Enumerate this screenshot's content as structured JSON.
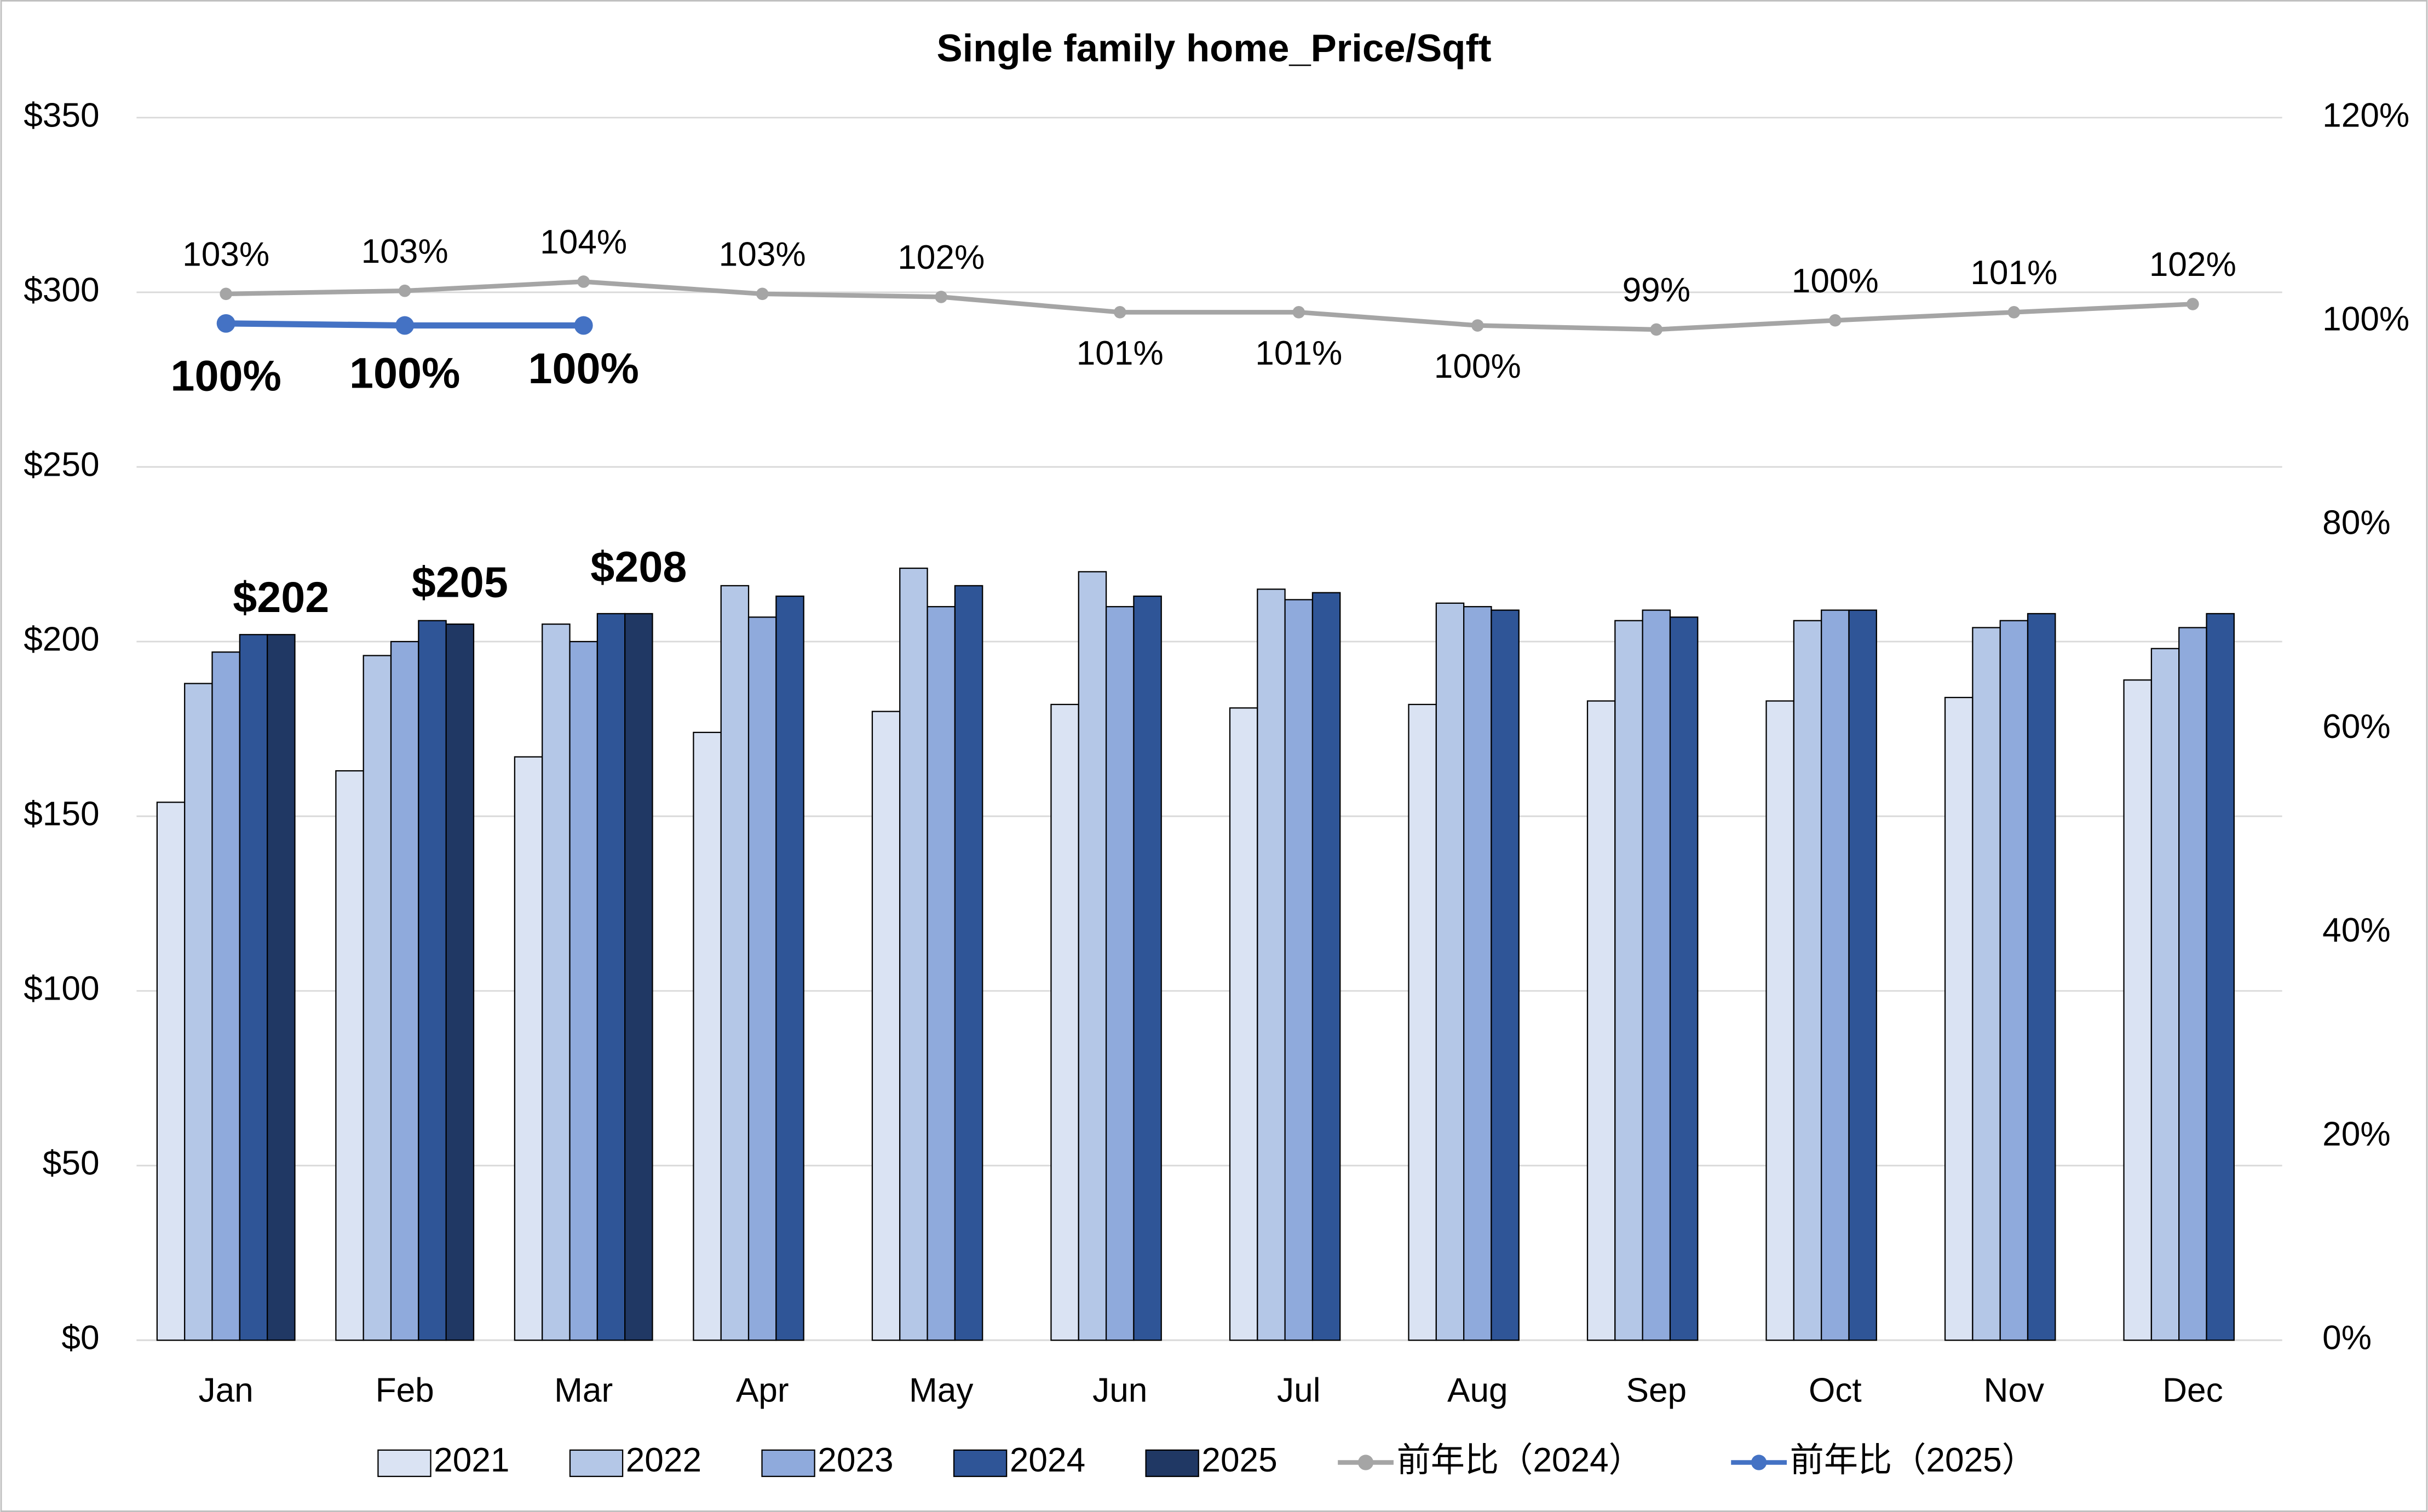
{
  "chart_data": {
    "type": "bar",
    "title": "Single family home_Price/Sqft",
    "categories": [
      "Jan",
      "Feb",
      "Mar",
      "Apr",
      "May",
      "Jun",
      "Jul",
      "Aug",
      "Sep",
      "Oct",
      "Nov",
      "Dec"
    ],
    "ylim": [
      0,
      350
    ],
    "yticks": [
      {
        "value": 0,
        "label": "$0"
      },
      {
        "value": 50,
        "label": "$50"
      },
      {
        "value": 100,
        "label": "$100"
      },
      {
        "value": 150,
        "label": "$150"
      },
      {
        "value": 200,
        "label": "$200"
      },
      {
        "value": 250,
        "label": "$250"
      },
      {
        "value": 300,
        "label": "$300"
      },
      {
        "value": 350,
        "label": "$350"
      }
    ],
    "y2lim": [
      0,
      120
    ],
    "y2ticks": [
      {
        "value": 0,
        "label": "0%"
      },
      {
        "value": 20,
        "label": "20%"
      },
      {
        "value": 40,
        "label": "40%"
      },
      {
        "value": 60,
        "label": "60%"
      },
      {
        "value": 80,
        "label": "80%"
      },
      {
        "value": 100,
        "label": "100%"
      },
      {
        "value": 120,
        "label": "120%"
      }
    ],
    "grid": true,
    "legend": "bottom",
    "series": [
      {
        "name": "2021",
        "type": "bar",
        "color": "#dae3f3",
        "values": [
          154,
          163,
          167,
          174,
          180,
          182,
          181,
          182,
          183,
          183,
          184,
          189
        ]
      },
      {
        "name": "2022",
        "type": "bar",
        "color": "#b4c7e7",
        "values": [
          188,
          196,
          205,
          216,
          221,
          220,
          215,
          211,
          206,
          206,
          204,
          198
        ]
      },
      {
        "name": "2023",
        "type": "bar",
        "color": "#8faadc",
        "values": [
          197,
          200,
          200,
          207,
          210,
          210,
          212,
          210,
          209,
          209,
          206,
          204
        ]
      },
      {
        "name": "2024",
        "type": "bar",
        "color": "#2f5597",
        "values": [
          202,
          206,
          208,
          213,
          216,
          213,
          214,
          209,
          207,
          209,
          208,
          208
        ]
      },
      {
        "name": "2025",
        "type": "bar",
        "color": "#203864",
        "values": [
          202,
          205,
          208,
          null,
          null,
          null,
          null,
          null,
          null,
          null,
          null,
          null
        ],
        "value_labels": [
          "$202",
          "$205",
          "$208",
          null,
          null,
          null,
          null,
          null,
          null,
          null,
          null,
          null
        ]
      },
      {
        "name": "前年比（2024）",
        "type": "line",
        "axis": "y2",
        "color": "#a5a5a5",
        "values": [
          102.7,
          103.0,
          103.9,
          102.7,
          102.4,
          100.9,
          100.9,
          99.6,
          99.2,
          100.1,
          100.9,
          101.7
        ],
        "value_labels": [
          "103%",
          "103%",
          "104%",
          "103%",
          "102%",
          "101%",
          "101%",
          "100%",
          "99%",
          "100%",
          "101%",
          "102%"
        ]
      },
      {
        "name": "前年比（2025）",
        "type": "line",
        "axis": "y2",
        "color": "#4472c4",
        "values": [
          99.8,
          99.6,
          99.6,
          null,
          null,
          null,
          null,
          null,
          null,
          null,
          null,
          null
        ],
        "value_labels": [
          "100%",
          "100%",
          "100%",
          null,
          null,
          null,
          null,
          null,
          null,
          null,
          null,
          null
        ]
      }
    ]
  }
}
